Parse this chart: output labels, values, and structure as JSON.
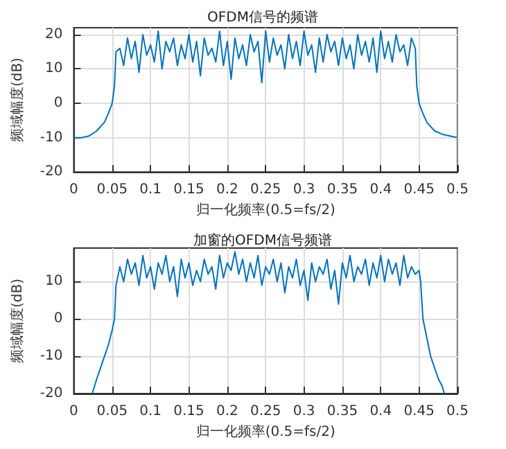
{
  "chart_data": [
    {
      "type": "line",
      "title": "OFDM信号的频谱",
      "xlabel": "归一化频率(0.5=fs/2)",
      "ylabel": "频域幅度(dB)",
      "color": "#0072bd",
      "grid": true,
      "marker": "none",
      "xlim": [
        0,
        0.5
      ],
      "ylim": [
        -20,
        22
      ],
      "xticks": [
        0,
        0.05,
        0.1,
        0.15,
        0.2,
        0.25,
        0.3,
        0.35,
        0.4,
        0.45,
        0.5
      ],
      "yticks": [
        -20,
        -10,
        0,
        10,
        20
      ],
      "x": [
        0,
        0.01,
        0.02,
        0.03,
        0.04,
        0.045,
        0.05,
        0.053,
        0.055,
        0.06,
        0.065,
        0.07,
        0.075,
        0.08,
        0.085,
        0.09,
        0.095,
        0.1,
        0.105,
        0.11,
        0.115,
        0.12,
        0.125,
        0.13,
        0.135,
        0.14,
        0.145,
        0.15,
        0.155,
        0.16,
        0.165,
        0.17,
        0.175,
        0.18,
        0.185,
        0.19,
        0.195,
        0.2,
        0.205,
        0.21,
        0.215,
        0.22,
        0.225,
        0.23,
        0.235,
        0.24,
        0.245,
        0.25,
        0.255,
        0.26,
        0.265,
        0.27,
        0.275,
        0.28,
        0.285,
        0.29,
        0.295,
        0.3,
        0.305,
        0.31,
        0.315,
        0.32,
        0.325,
        0.33,
        0.335,
        0.34,
        0.345,
        0.35,
        0.355,
        0.36,
        0.365,
        0.37,
        0.375,
        0.38,
        0.385,
        0.39,
        0.395,
        0.4,
        0.405,
        0.41,
        0.415,
        0.42,
        0.425,
        0.43,
        0.435,
        0.44,
        0.445,
        0.447,
        0.45,
        0.455,
        0.46,
        0.47,
        0.48,
        0.49,
        0.5
      ],
      "values": [
        -10,
        -10,
        -9.5,
        -8,
        -5.5,
        -3,
        0,
        5,
        15,
        16,
        11,
        19,
        13,
        18,
        9,
        20,
        14,
        17,
        12,
        21,
        10,
        18,
        15,
        19,
        11,
        17,
        13,
        20,
        12,
        18,
        8,
        19,
        14,
        16,
        12,
        21,
        11,
        18,
        7,
        19,
        13,
        17,
        11,
        20,
        15,
        18,
        6,
        21,
        12,
        19,
        14,
        17,
        10,
        20,
        13,
        18,
        11,
        21,
        14,
        17,
        9,
        19,
        12,
        20,
        15,
        18,
        11,
        19,
        13,
        17,
        10,
        20,
        14,
        18,
        12,
        19,
        9,
        21,
        13,
        18,
        12,
        20,
        15,
        17,
        11,
        19,
        16,
        5,
        0,
        -3,
        -5.5,
        -8,
        -9,
        -9.5,
        -10
      ]
    },
    {
      "type": "line",
      "title": "加窗的OFDM信号频谱",
      "xlabel": "归一化频率(0.5=fs/2)",
      "ylabel": "频域幅度(dB)",
      "color": "#0072bd",
      "grid": true,
      "marker": "none",
      "xlim": [
        0,
        0.5
      ],
      "ylim": [
        -20,
        19
      ],
      "xticks": [
        0,
        0.05,
        0.1,
        0.15,
        0.2,
        0.25,
        0.3,
        0.35,
        0.4,
        0.45,
        0.5
      ],
      "yticks": [
        -20,
        -10,
        0,
        10
      ],
      "x": [
        0.024,
        0.03,
        0.035,
        0.04,
        0.045,
        0.05,
        0.053,
        0.055,
        0.058,
        0.06,
        0.065,
        0.07,
        0.075,
        0.08,
        0.085,
        0.09,
        0.095,
        0.1,
        0.105,
        0.11,
        0.115,
        0.12,
        0.125,
        0.13,
        0.135,
        0.14,
        0.145,
        0.15,
        0.155,
        0.16,
        0.165,
        0.17,
        0.175,
        0.18,
        0.185,
        0.19,
        0.195,
        0.2,
        0.205,
        0.21,
        0.215,
        0.22,
        0.225,
        0.23,
        0.235,
        0.24,
        0.245,
        0.25,
        0.255,
        0.26,
        0.265,
        0.27,
        0.275,
        0.28,
        0.285,
        0.29,
        0.295,
        0.3,
        0.305,
        0.31,
        0.315,
        0.32,
        0.325,
        0.33,
        0.335,
        0.34,
        0.345,
        0.35,
        0.355,
        0.36,
        0.365,
        0.37,
        0.375,
        0.38,
        0.385,
        0.39,
        0.395,
        0.4,
        0.405,
        0.41,
        0.415,
        0.42,
        0.425,
        0.43,
        0.435,
        0.44,
        0.445,
        0.45,
        0.452,
        0.455,
        0.46,
        0.465,
        0.47,
        0.475,
        0.48,
        0.483
      ],
      "values": [
        -20,
        -16,
        -13,
        -10,
        -7,
        -3,
        0,
        9,
        12,
        14,
        10,
        16,
        12,
        15,
        9,
        17,
        11,
        14,
        8,
        15,
        12,
        17,
        10,
        14,
        6,
        16,
        11,
        15,
        9,
        13,
        10,
        16,
        12,
        14,
        8,
        17,
        11,
        15,
        13,
        18,
        12,
        16,
        10,
        15,
        11,
        17,
        9,
        14,
        12,
        16,
        10,
        15,
        7,
        14,
        11,
        16,
        9,
        13,
        5,
        15,
        10,
        14,
        12,
        16,
        8,
        13,
        4,
        15,
        11,
        17,
        10,
        14,
        12,
        16,
        9,
        15,
        11,
        17,
        10,
        16,
        12,
        15,
        9,
        17,
        11,
        14,
        12,
        13,
        10,
        0,
        -5,
        -10,
        -13,
        -16,
        -18,
        -20
      ]
    }
  ]
}
